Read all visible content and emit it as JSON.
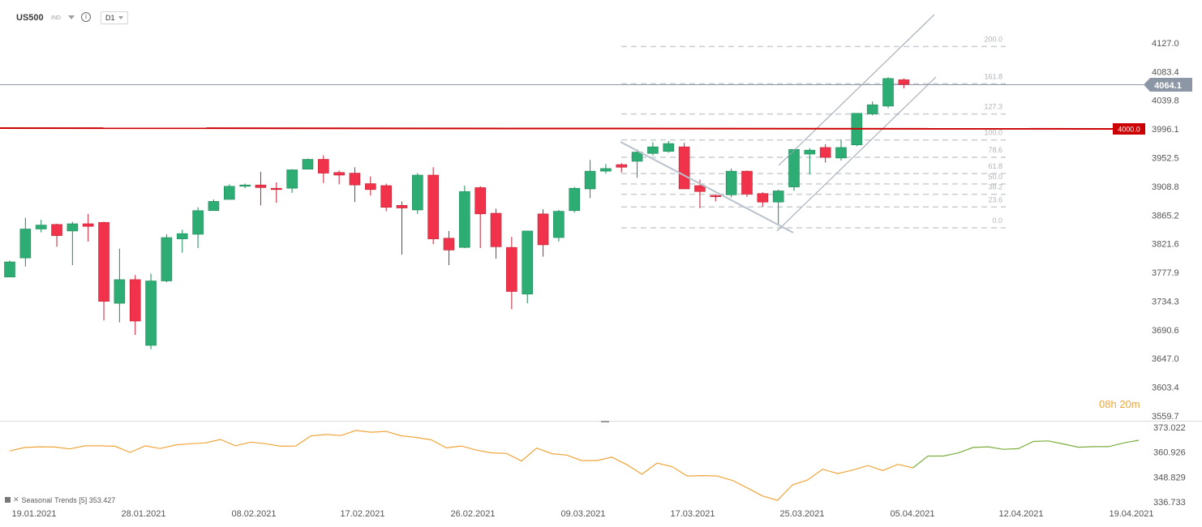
{
  "header": {
    "symbol": "US500",
    "market": "IND",
    "timeframe": "D1"
  },
  "countdown": {
    "hours": "08",
    "h": "h",
    "minutes": "20",
    "m": "m"
  },
  "indicator": {
    "label": "Seasonal",
    "trend": "Trends [5] 353.427"
  },
  "colors": {
    "up": "#2dad74",
    "down": "#f0334a",
    "resistance": "#cc0000",
    "seasonal": "#f0a53a",
    "seasonal_future": "#7aae3c",
    "channel": "#8c96a5"
  },
  "chart_data": [
    {
      "type": "candlestick",
      "symbol": "US500",
      "timeframe": "D1",
      "y_ticks": [
        "4127.0",
        "4083.4",
        "4039.8",
        "3996.1",
        "3952.5",
        "3908.8",
        "3865.2",
        "3821.6",
        "3777.9",
        "3734.3",
        "3690.6",
        "3647.0",
        "3603.4",
        "3559.7"
      ],
      "ylim": [
        3559.7,
        4127.0
      ],
      "x_labels": [
        "19.01.2021",
        "28.01.2021",
        "08.02.2021",
        "17.02.2021",
        "26.02.2021",
        "09.03.2021",
        "17.03.2021",
        "25.03.2021",
        "05.04.2021",
        "12.04.2021",
        "19.04.2021"
      ],
      "last_price": "4064.1",
      "resistance": {
        "value": 4000.0,
        "label": "4000.0"
      },
      "fibonacci_labels": [
        "200.0",
        "161.8",
        "127.3",
        "100.0",
        "78.6",
        "61.8",
        "50.0",
        "38.2",
        "23.6",
        "0.0"
      ],
      "fibonacci_levels": [
        4121.6,
        4064.9,
        4018.9,
        3979.5,
        3953.1,
        3928.4,
        3912.6,
        3896.8,
        3877.5,
        3845.8
      ],
      "candles": [
        {
          "o": 3771,
          "h": 3796,
          "l": 3771,
          "c": 3794
        },
        {
          "o": 3800,
          "h": 3861,
          "l": 3787,
          "c": 3844
        },
        {
          "o": 3844,
          "h": 3858,
          "l": 3839,
          "c": 3850
        },
        {
          "o": 3851,
          "h": 3852,
          "l": 3817,
          "c": 3834
        },
        {
          "o": 3841,
          "h": 3855,
          "l": 3789,
          "c": 3852
        },
        {
          "o": 3852,
          "h": 3867,
          "l": 3825,
          "c": 3848
        },
        {
          "o": 3854,
          "h": 3855,
          "l": 3705,
          "c": 3734
        },
        {
          "o": 3731,
          "h": 3814,
          "l": 3702,
          "c": 3767
        },
        {
          "o": 3767,
          "h": 3774,
          "l": 3683,
          "c": 3704
        },
        {
          "o": 3667,
          "h": 3776,
          "l": 3661,
          "c": 3765
        },
        {
          "o": 3765,
          "h": 3836,
          "l": 3763,
          "c": 3831
        },
        {
          "o": 3829,
          "h": 3843,
          "l": 3808,
          "c": 3837
        },
        {
          "o": 3836,
          "h": 3877,
          "l": 3815,
          "c": 3872
        },
        {
          "o": 3872,
          "h": 3889,
          "l": 3872,
          "c": 3886
        },
        {
          "o": 3889,
          "h": 3912,
          "l": 3889,
          "c": 3909
        },
        {
          "o": 3909,
          "h": 3913,
          "l": 3906,
          "c": 3911
        },
        {
          "o": 3911,
          "h": 3931,
          "l": 3880,
          "c": 3907
        },
        {
          "o": 3906,
          "h": 3915,
          "l": 3884,
          "c": 3904
        },
        {
          "o": 3906,
          "h": 3935,
          "l": 3899,
          "c": 3934
        },
        {
          "o": 3935,
          "h": 3951,
          "l": 3935,
          "c": 3950
        },
        {
          "o": 3950,
          "h": 3956,
          "l": 3914,
          "c": 3929
        },
        {
          "o": 3930,
          "h": 3933,
          "l": 3912,
          "c": 3926
        },
        {
          "o": 3929,
          "h": 3938,
          "l": 3885,
          "c": 3911
        },
        {
          "o": 3913,
          "h": 3924,
          "l": 3895,
          "c": 3904
        },
        {
          "o": 3910,
          "h": 3913,
          "l": 3871,
          "c": 3877
        },
        {
          "o": 3880,
          "h": 3886,
          "l": 3805,
          "c": 3876
        },
        {
          "o": 3873,
          "h": 3929,
          "l": 3867,
          "c": 3926
        },
        {
          "o": 3926,
          "h": 3938,
          "l": 3821,
          "c": 3829
        },
        {
          "o": 3830,
          "h": 3841,
          "l": 3789,
          "c": 3812
        },
        {
          "o": 3816,
          "h": 3910,
          "l": 3815,
          "c": 3901
        },
        {
          "o": 3907,
          "h": 3909,
          "l": 3815,
          "c": 3867
        },
        {
          "o": 3868,
          "h": 3875,
          "l": 3799,
          "c": 3817
        },
        {
          "o": 3816,
          "h": 3832,
          "l": 3722,
          "c": 3749
        },
        {
          "o": 3745,
          "h": 3840,
          "l": 3731,
          "c": 3841
        },
        {
          "o": 3867,
          "h": 3874,
          "l": 3802,
          "c": 3820
        },
        {
          "o": 3831,
          "h": 3873,
          "l": 3825,
          "c": 3871
        },
        {
          "o": 3872,
          "h": 3908,
          "l": 3869,
          "c": 3906
        },
        {
          "o": 3905,
          "h": 3949,
          "l": 3891,
          "c": 3932
        },
        {
          "o": 3932,
          "h": 3943,
          "l": 3928,
          "c": 3936
        },
        {
          "o": 3942,
          "h": 3944,
          "l": 3930,
          "c": 3938
        },
        {
          "o": 3947,
          "h": 3965,
          "l": 3922,
          "c": 3961
        },
        {
          "o": 3959,
          "h": 3976,
          "l": 3956,
          "c": 3969
        },
        {
          "o": 3962,
          "h": 3978,
          "l": 3960,
          "c": 3974
        },
        {
          "o": 3969,
          "h": 3975,
          "l": 3905,
          "c": 3905
        },
        {
          "o": 3910,
          "h": 3919,
          "l": 3876,
          "c": 3901
        },
        {
          "o": 3895,
          "h": 3897,
          "l": 3886,
          "c": 3894
        },
        {
          "o": 3896,
          "h": 3936,
          "l": 3892,
          "c": 3932
        },
        {
          "o": 3932,
          "h": 3933,
          "l": 3893,
          "c": 3897
        },
        {
          "o": 3898,
          "h": 3900,
          "l": 3878,
          "c": 3885
        },
        {
          "o": 3885,
          "h": 3904,
          "l": 3849,
          "c": 3902
        },
        {
          "o": 3908,
          "h": 3962,
          "l": 3902,
          "c": 3965
        },
        {
          "o": 3958,
          "h": 3967,
          "l": 3927,
          "c": 3964
        },
        {
          "o": 3968,
          "h": 3973,
          "l": 3945,
          "c": 3953
        },
        {
          "o": 3952,
          "h": 3980,
          "l": 3948,
          "c": 3968
        },
        {
          "o": 3972,
          "h": 4020,
          "l": 3970,
          "c": 4020
        },
        {
          "o": 4019,
          "h": 4038,
          "l": 4017,
          "c": 4033
        },
        {
          "o": 4031,
          "h": 4075,
          "l": 4028,
          "c": 4073
        },
        {
          "o": 4071,
          "h": 4073,
          "l": 4058,
          "c": 4064
        }
      ]
    },
    {
      "type": "line",
      "title": "Seasonal",
      "y_ticks": [
        "373.022",
        "360.926",
        "348.829",
        "336.733"
      ],
      "ylim": [
        336.733,
        373.022
      ],
      "values": [
        361.5,
        363.2,
        363.5,
        363.4,
        362.5,
        364.0,
        364.0,
        363.8,
        360.8,
        364.0,
        362.7,
        364.4,
        365.0,
        365.4,
        367.1,
        364.0,
        365.8,
        365.0,
        363.8,
        363.9,
        368.8,
        369.5,
        369.0,
        371.5,
        370.6,
        371.0,
        368.9,
        368.1,
        366.9,
        363.0,
        363.9,
        361.9,
        360.6,
        360.3,
        356.6,
        362.9,
        360.2,
        359.5,
        356.8,
        356.8,
        358.5,
        354.8,
        350.2,
        355.6,
        353.9,
        349.3,
        349.5,
        349.3,
        347.2,
        343.5,
        339.6,
        337.5,
        345.0,
        347.4,
        352.6,
        350.5,
        352.2,
        354.4,
        352.0,
        355.0,
        353.3,
        359.0,
        359.0,
        360.5,
        363.2,
        363.5,
        362.3,
        362.6,
        366.1,
        366.4,
        364.9,
        363.3,
        363.6,
        363.6,
        365.4,
        366.7
      ]
    }
  ]
}
